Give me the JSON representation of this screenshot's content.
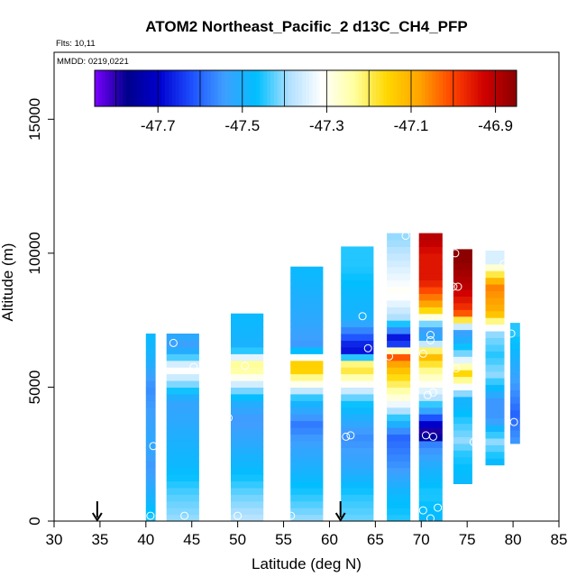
{
  "chart_data": {
    "type": "heatmap",
    "title": "ATOM2 Northeast_Pacific_2 d13C_CH4_PFP",
    "annotations": [
      "Flts: 10,11",
      "MMDD: 0219,0221"
    ],
    "xlabel": "Latitude (deg N)",
    "ylabel": "Altitude (m)",
    "xlim": [
      30,
      85
    ],
    "ylim": [
      0,
      17500
    ],
    "x_ticks": [
      30,
      35,
      40,
      45,
      50,
      55,
      60,
      65,
      70,
      75,
      80,
      85
    ],
    "y_ticks": [
      0,
      5000,
      10000,
      15000
    ],
    "colorbar": {
      "min": -47.85,
      "max": -46.85,
      "tick_values": [
        -47.7,
        -47.5,
        -47.3,
        -47.1,
        -46.9
      ],
      "tick_labels": [
        "-47.7",
        "-47.5",
        "-47.3",
        "-47.1",
        "-46.9"
      ],
      "colors": [
        "#7a00ff",
        "#00008b",
        "#0000d0",
        "#1e50ff",
        "#3f9fff",
        "#00bfff",
        "#b0e0ff",
        "#ffffff",
        "#ffffa0",
        "#ffd700",
        "#ffa500",
        "#ff4500",
        "#d00000",
        "#8b0000"
      ]
    },
    "arrows_latitude": [
      34.7,
      61.2
    ],
    "profiles": [
      {
        "lat": 40.5,
        "width": 1.0,
        "levels": [
          [
            100,
            -47.45
          ],
          [
            1000,
            -47.5
          ],
          [
            2000,
            -47.55
          ],
          [
            3000,
            -47.52
          ],
          [
            4000,
            -47.54
          ],
          [
            5000,
            -47.56
          ],
          [
            6000,
            -47.5
          ],
          [
            6800,
            -47.48
          ]
        ],
        "samples": [
          [
            40.5,
            200
          ],
          [
            40.8,
            2800
          ]
        ]
      },
      {
        "lat": 44,
        "width": 3.5,
        "levels": [
          [
            100,
            -47.4
          ],
          [
            1000,
            -47.43
          ],
          [
            2000,
            -47.48
          ],
          [
            3000,
            -47.5
          ],
          [
            3800,
            -47.52
          ],
          [
            4500,
            -47.53
          ],
          [
            5700,
            -47.3
          ],
          [
            6500,
            -47.55
          ],
          [
            6800,
            -47.52
          ]
        ],
        "samples": [
          [
            44.2,
            200
          ],
          [
            43,
            6650
          ],
          [
            45.2,
            5750
          ]
        ]
      },
      {
        "lat": 51,
        "width": 3.5,
        "levels": [
          [
            100,
            -47.38
          ],
          [
            1000,
            -47.42
          ],
          [
            2000,
            -47.48
          ],
          [
            3000,
            -47.52
          ],
          [
            3800,
            -47.55
          ],
          [
            4500,
            -47.5
          ],
          [
            5800,
            -47.2
          ],
          [
            6500,
            -47.5
          ],
          [
            7500,
            -47.48
          ]
        ],
        "samples": [
          [
            50,
            200
          ],
          [
            49,
            3850
          ],
          [
            50.8,
            5800
          ]
        ]
      },
      {
        "lat": 57.5,
        "width": 3.5,
        "levels": [
          [
            100,
            -47.4
          ],
          [
            1000,
            -47.45
          ],
          [
            2000,
            -47.5
          ],
          [
            3000,
            -47.54
          ],
          [
            3600,
            -47.58
          ],
          [
            4500,
            -47.48
          ],
          [
            5800,
            -47.1
          ],
          [
            6500,
            -47.55
          ],
          [
            7500,
            -47.52
          ],
          [
            8500,
            -47.5
          ],
          [
            9200,
            -47.48
          ]
        ],
        "samples": [
          [
            55.8,
            200
          ],
          [
            55,
            3600
          ]
        ]
      },
      {
        "lat": 63,
        "width": 3.5,
        "levels": [
          [
            100,
            -47.42
          ],
          [
            1000,
            -47.45
          ],
          [
            2000,
            -47.52
          ],
          [
            3200,
            -47.56
          ],
          [
            4500,
            -47.45
          ],
          [
            5800,
            -47.15
          ],
          [
            6400,
            -47.7
          ],
          [
            7500,
            -47.5
          ],
          [
            8500,
            -47.48
          ],
          [
            9500,
            -47.45
          ],
          [
            10000,
            -47.45
          ]
        ],
        "samples": [
          [
            61.8,
            3150
          ],
          [
            62.3,
            3200
          ],
          [
            63.6,
            7650
          ],
          [
            64.2,
            6450
          ]
        ]
      },
      {
        "lat": 67.5,
        "width": 2.5,
        "levels": [
          [
            100,
            -47.45
          ],
          [
            1000,
            -47.48
          ],
          [
            2000,
            -47.55
          ],
          [
            3200,
            -47.6
          ],
          [
            4500,
            -47.3
          ],
          [
            5800,
            -47.1
          ],
          [
            6200,
            -47.0
          ],
          [
            6700,
            -47.75
          ],
          [
            7500,
            -47.4
          ],
          [
            8500,
            -47.3
          ],
          [
            9500,
            -47.35
          ],
          [
            10500,
            -47.4
          ]
        ],
        "samples": [
          [
            65.5,
            3500
          ],
          [
            66.5,
            6150
          ],
          [
            68.3,
            10650
          ]
        ]
      },
      {
        "lat": 71,
        "width": 2.5,
        "levels": [
          [
            100,
            -47.48
          ],
          [
            1000,
            -47.45
          ],
          [
            2000,
            -47.5
          ],
          [
            3000,
            -47.58
          ],
          [
            3200,
            -47.85
          ],
          [
            4500,
            -47.4
          ],
          [
            5800,
            -47.2
          ],
          [
            6200,
            -47.1
          ],
          [
            7000,
            -47.6
          ],
          [
            8000,
            -47.1
          ],
          [
            9000,
            -46.95
          ],
          [
            10000,
            -46.95
          ],
          [
            10500,
            -46.9
          ]
        ],
        "samples": [
          [
            70.2,
            400
          ],
          [
            71,
            100
          ],
          [
            71.8,
            500
          ],
          [
            70.5,
            3200
          ],
          [
            71.3,
            3150
          ],
          [
            70.7,
            4700
          ],
          [
            71.3,
            4800
          ],
          [
            70.2,
            6250
          ],
          [
            71,
            6750
          ],
          [
            71,
            6950
          ]
        ]
      },
      {
        "lat": 74.5,
        "width": 2.0,
        "levels": [
          [
            1500,
            -47.48
          ],
          [
            2500,
            -47.45
          ],
          [
            3000,
            -47.4
          ],
          [
            3800,
            -47.45
          ],
          [
            4500,
            -47.5
          ],
          [
            5500,
            -47.15
          ],
          [
            6200,
            -47.4
          ],
          [
            7000,
            -47.55
          ],
          [
            7800,
            -47.0
          ],
          [
            8800,
            -46.9
          ],
          [
            9800,
            -46.85
          ]
        ],
        "samples": [
          [
            73.5,
            8750
          ],
          [
            74,
            8750
          ],
          [
            73.7,
            10000
          ],
          [
            73,
            5850
          ],
          [
            73.8,
            5700
          ],
          [
            73,
            3150
          ]
        ]
      },
      {
        "lat": 78,
        "width": 2.0,
        "levels": [
          [
            2200,
            -47.48
          ],
          [
            3000,
            -47.4
          ],
          [
            3800,
            -47.55
          ],
          [
            4500,
            -47.55
          ],
          [
            5500,
            -47.4
          ],
          [
            6200,
            -47.45
          ],
          [
            7000,
            -47.4
          ],
          [
            7800,
            -47.1
          ],
          [
            8800,
            -47.05
          ],
          [
            9700,
            -47.35
          ]
        ],
        "samples": [
          [
            75.7,
            2950
          ],
          [
            76.2,
            6050
          ],
          [
            79,
            9600
          ]
        ]
      },
      {
        "lat": 80.2,
        "width": 1.0,
        "levels": [
          [
            3000,
            -47.55
          ],
          [
            4000,
            -47.6
          ],
          [
            5000,
            -47.55
          ],
          [
            6000,
            -47.5
          ],
          [
            7000,
            -47.45
          ]
        ],
        "samples": [
          [
            79.8,
            7000
          ],
          [
            80.1,
            3700
          ]
        ]
      }
    ]
  }
}
